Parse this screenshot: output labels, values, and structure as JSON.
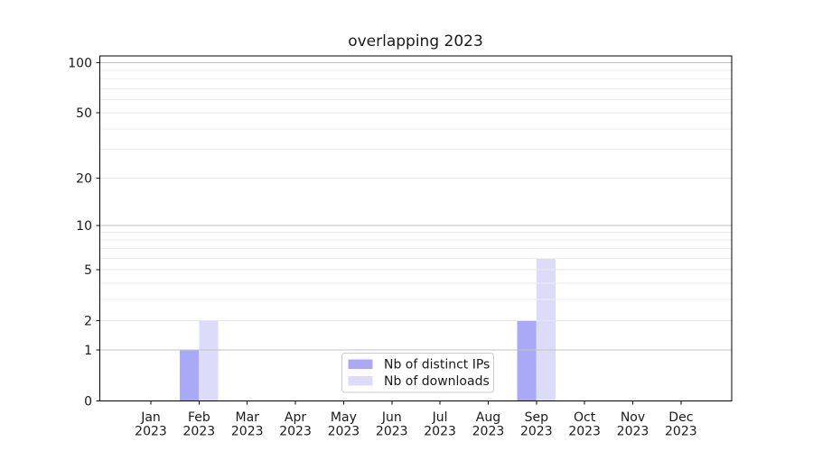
{
  "chart_data": {
    "type": "bar",
    "title": "overlapping 2023",
    "categories": [
      "Jan",
      "Feb",
      "Mar",
      "Apr",
      "May",
      "Jun",
      "Jul",
      "Aug",
      "Sep",
      "Oct",
      "Nov",
      "Dec"
    ],
    "category_year": "2023",
    "series": [
      {
        "name": "Nb of distinct IPs",
        "color": "#a9a9f8",
        "values": [
          0,
          1,
          0,
          0,
          0,
          0,
          0,
          0,
          2,
          0,
          0,
          0
        ]
      },
      {
        "name": "Nb of downloads",
        "color": "#dcdcfa",
        "values": [
          0,
          2,
          0,
          0,
          0,
          0,
          0,
          0,
          6,
          0,
          0,
          0
        ]
      }
    ],
    "y_axis": {
      "scale": "log1p",
      "major_ticks": [
        0,
        1,
        2,
        5,
        10,
        20,
        50,
        100
      ],
      "minor_gridlines": [
        3,
        4,
        6,
        7,
        8,
        9,
        30,
        40,
        60,
        70,
        80,
        90
      ],
      "strong_gridlines": [
        1,
        10,
        100
      ],
      "ylim": [
        0,
        110
      ]
    },
    "legend": {
      "position": "lower center"
    },
    "grid": true
  }
}
